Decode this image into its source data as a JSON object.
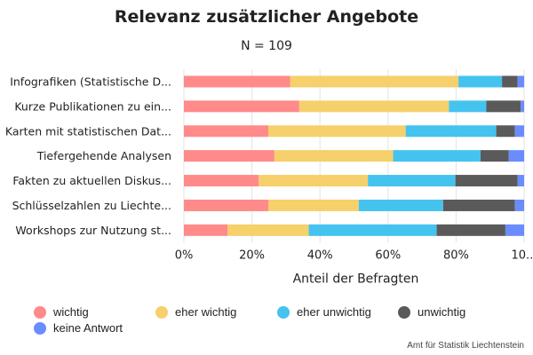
{
  "chart_data": {
    "type": "bar",
    "orientation": "horizontal",
    "stacked": true,
    "percent": true,
    "title": "Relevanz zusätzlicher Angebote",
    "subtitle": "N = 109",
    "xlabel": "Anteil der Befragten",
    "ylabel": "",
    "xlim": [
      0,
      100
    ],
    "x_ticks": [
      "0%",
      "20%",
      "40%",
      "60%",
      "80%",
      "10..."
    ],
    "categories": [
      "Infografiken (Statistische D...",
      "Kurze Publikationen zu ein...",
      "Karten mit statistischen Dat...",
      "Tiefergehende Analysen",
      "Fakten zu aktuellen Diskus...",
      "Schlüsselzahlen zu Liechte...",
      "Workshops zur Nutzung st..."
    ],
    "series": [
      {
        "name": "wichtig",
        "color": "#ff8a8a",
        "values": [
          31.2,
          33.9,
          24.8,
          26.6,
          22.0,
          24.8,
          12.8
        ]
      },
      {
        "name": "eher wichtig",
        "color": "#f5d06b",
        "values": [
          49.5,
          44.0,
          40.4,
          34.9,
          32.1,
          26.6,
          23.9
        ]
      },
      {
        "name": "eher unwichtig",
        "color": "#45c3ef",
        "values": [
          12.8,
          11.0,
          26.6,
          25.7,
          25.7,
          24.8,
          37.6
        ]
      },
      {
        "name": "unwichtig",
        "color": "#5a5a5a",
        "values": [
          4.6,
          10.1,
          5.5,
          8.3,
          18.3,
          21.1,
          20.2
        ]
      },
      {
        "name": "keine Antwort",
        "color": "#6b8cff",
        "values": [
          1.9,
          1.0,
          2.7,
          4.5,
          1.9,
          2.7,
          5.5
        ]
      }
    ],
    "grid": true,
    "legend_position": "bottom"
  },
  "source": "Amt für Statistik Liechtenstein"
}
